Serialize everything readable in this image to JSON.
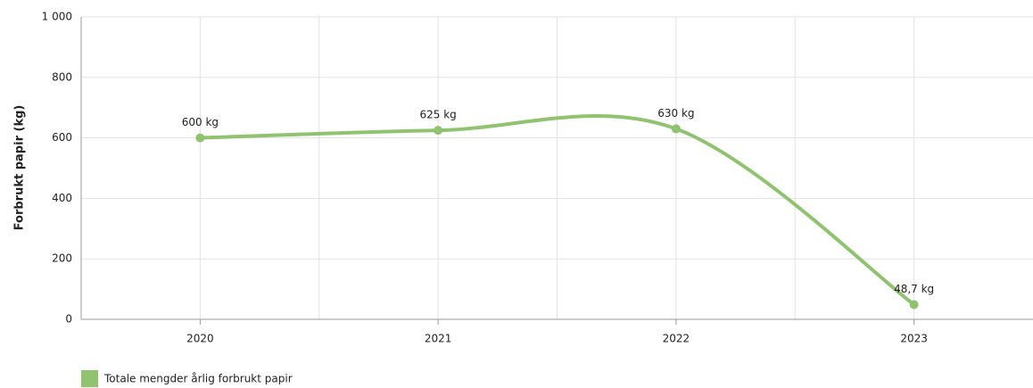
{
  "chart_data": {
    "type": "line",
    "y_label": "Forbrukt papir (kg)",
    "categories": [
      "2020",
      "2021",
      "2022",
      "2023"
    ],
    "series": [
      {
        "name": "Totale mengder årlig forbrukt papir",
        "color": "#8fc36f",
        "values": [
          600,
          625,
          630,
          48.7
        ],
        "value_labels": [
          "600 kg",
          "625 kg",
          "630 kg",
          "48,7 kg"
        ]
      }
    ],
    "ylim": [
      0,
      1000
    ],
    "yticks": [
      0,
      200,
      400,
      600,
      800,
      {
        "value": 1000,
        "label": "1 000"
      }
    ],
    "grid": true,
    "legend": "bottom-left"
  }
}
